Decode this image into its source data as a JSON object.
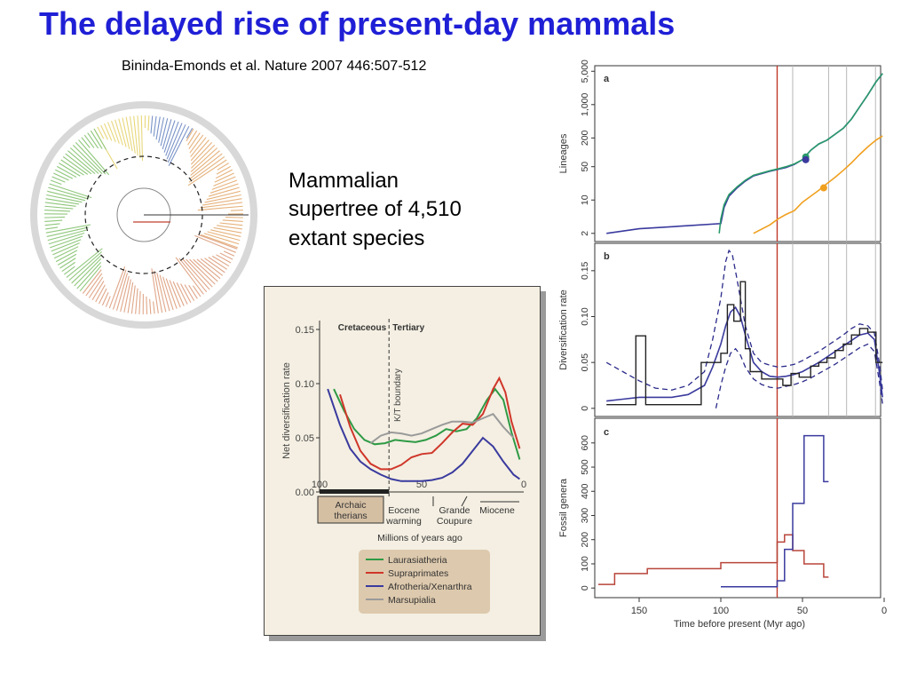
{
  "slide": {
    "title": "The delayed rise of present-day mammals",
    "citation": "Bininda-Emonds et al. Nature 2007 446:507-512",
    "caption_lines": [
      "Mammalian",
      "supertree of 4,510",
      "extant species"
    ]
  },
  "colors": {
    "title_blue": "#1f1fd6",
    "laurasiatheria": "#2e9a45",
    "supraprimates": "#d0362a",
    "afrotheria_xenarthra": "#3a3a9e",
    "marsupialia": "#9a9a9a",
    "kt_line": "#c0392b",
    "lineage_orange": "#f0a020",
    "inset_bg": "#f4efe2"
  },
  "chart_data": [
    {
      "id": "inset",
      "type": "line",
      "title": "",
      "era_labels": [
        "Cretaceous",
        "Tertiary"
      ],
      "boundary_label": "K/T boundary",
      "xlabel": "Millions of years ago",
      "ylabel": "Net diversification rate",
      "xlim": [
        100,
        0
      ],
      "ylim": [
        0,
        0.15
      ],
      "x_ticks": [
        "100",
        "50",
        "0"
      ],
      "y_ticks": [
        "0.00",
        "0.05",
        "0.10",
        "0.15"
      ],
      "annotations": [
        "Eocene warming",
        "Grande Coupure",
        "Miocene"
      ],
      "bar_label": "Archaic therians",
      "legend": [
        "Laurasiatheria",
        "Supraprimates",
        "Afrotheria/Xenarthra",
        "Marsupialia"
      ],
      "series": [
        {
          "name": "Laurasiatheria",
          "x": [
            93,
            88,
            83,
            78,
            73,
            68,
            63,
            58,
            53,
            48,
            43,
            38,
            33,
            28,
            23,
            18,
            14,
            10,
            6,
            2
          ],
          "y": [
            0.095,
            0.075,
            0.058,
            0.048,
            0.044,
            0.045,
            0.048,
            0.047,
            0.046,
            0.048,
            0.052,
            0.058,
            0.056,
            0.058,
            0.068,
            0.085,
            0.095,
            0.085,
            0.055,
            0.03
          ]
        },
        {
          "name": "Supraprimates",
          "x": [
            90,
            85,
            80,
            75,
            70,
            65,
            60,
            55,
            50,
            45,
            40,
            35,
            30,
            25,
            20,
            15,
            12,
            9,
            6,
            2
          ],
          "y": [
            0.09,
            0.06,
            0.038,
            0.026,
            0.021,
            0.021,
            0.025,
            0.032,
            0.035,
            0.036,
            0.045,
            0.055,
            0.063,
            0.062,
            0.072,
            0.095,
            0.105,
            0.092,
            0.065,
            0.04
          ]
        },
        {
          "name": "Afrotheria/Xenarthra",
          "x": [
            96,
            90,
            85,
            80,
            75,
            70,
            65,
            60,
            55,
            50,
            45,
            40,
            35,
            30,
            25,
            20,
            15,
            10,
            5,
            2
          ],
          "y": [
            0.095,
            0.062,
            0.04,
            0.028,
            0.021,
            0.016,
            0.012,
            0.01,
            0.01,
            0.01,
            0.011,
            0.013,
            0.018,
            0.026,
            0.038,
            0.05,
            0.042,
            0.028,
            0.016,
            0.012
          ]
        },
        {
          "name": "Marsupialia",
          "x": [
            75,
            70,
            65,
            60,
            55,
            50,
            45,
            40,
            35,
            30,
            25,
            20,
            15,
            10,
            5
          ],
          "y": [
            0.045,
            0.052,
            0.055,
            0.054,
            0.052,
            0.054,
            0.058,
            0.062,
            0.065,
            0.065,
            0.064,
            0.068,
            0.072,
            0.06,
            0.05
          ]
        }
      ]
    },
    {
      "id": "panel-a",
      "type": "line",
      "panel_label": "a",
      "ylabel": "Lineages",
      "xlim": [
        175,
        0
      ],
      "ylim": [
        1.6,
        6000
      ],
      "yscale": "log",
      "y_ticks": [
        2,
        10,
        50,
        200,
        1000,
        5000
      ],
      "y_tick_labels": [
        "2",
        "10",
        "50",
        "200",
        "1,000",
        "5,000"
      ],
      "series": [
        {
          "color": "blue",
          "x": [
            170,
            150,
            100,
            98,
            95,
            90,
            85,
            80,
            70,
            65,
            60,
            55,
            50,
            45,
            40,
            35,
            30,
            25,
            20,
            15,
            10,
            5,
            1
          ],
          "y": [
            2,
            2.5,
            3.2,
            7,
            12,
            18,
            25,
            32,
            40,
            44,
            48,
            56,
            70,
            110,
            150,
            180,
            240,
            320,
            500,
            900,
            1600,
            3000,
            4500
          ]
        },
        {
          "color": "green",
          "x": [
            101,
            100,
            98,
            95,
            90,
            85,
            80,
            70,
            65,
            60,
            55,
            50,
            45,
            40,
            35,
            30,
            25,
            20,
            15,
            10,
            5,
            1
          ],
          "y": [
            2,
            4,
            8,
            13,
            19,
            26,
            33,
            41,
            45,
            50,
            57,
            70,
            110,
            150,
            180,
            240,
            320,
            500,
            900,
            1600,
            3000,
            4500
          ]
        },
        {
          "color": "orange",
          "x": [
            80,
            70,
            65,
            60,
            55,
            50,
            45,
            40,
            35,
            30,
            25,
            20,
            15,
            10,
            5,
            1
          ],
          "y": [
            2,
            3,
            4,
            5,
            6,
            9,
            12,
            16,
            22,
            30,
            42,
            60,
            90,
            130,
            180,
            220
          ]
        }
      ],
      "highlight_points": [
        {
          "color": "green",
          "x": 48,
          "y": 80
        },
        {
          "color": "blue",
          "x": 48,
          "y": 70
        },
        {
          "color": "orange",
          "x": 37,
          "y": 18
        }
      ],
      "vertical_lines": [
        65.5,
        56,
        34,
        23,
        5.3,
        1.8
      ]
    },
    {
      "id": "panel-b",
      "type": "line",
      "panel_label": "b",
      "ylabel": "Diversification rate",
      "xlim": [
        175,
        0
      ],
      "ylim": [
        -0.005,
        0.175
      ],
      "y_ticks": [
        0,
        0.05,
        0.1,
        0.15
      ],
      "y_tick_labels": [
        "0",
        "0.05",
        "0.10",
        "0.15"
      ],
      "step_series": {
        "x": [
          170,
          152,
          152,
          146,
          146,
          112,
          112,
          100,
          100,
          96,
          96,
          92,
          92,
          88,
          88,
          85,
          85,
          82,
          82,
          75,
          75,
          62,
          62,
          57,
          57,
          52,
          52,
          45,
          45,
          40,
          40,
          35,
          35,
          30,
          30,
          25,
          25,
          20,
          20,
          15,
          15,
          10,
          10,
          5,
          5,
          1
        ],
        "y": [
          0.004,
          0.004,
          0.079,
          0.079,
          0.004,
          0.004,
          0.05,
          0.05,
          0.06,
          0.06,
          0.113,
          0.113,
          0.095,
          0.095,
          0.138,
          0.138,
          0.065,
          0.065,
          0.04,
          0.04,
          0.032,
          0.032,
          0.025,
          0.025,
          0.038,
          0.038,
          0.034,
          0.034,
          0.046,
          0.046,
          0.05,
          0.05,
          0.055,
          0.055,
          0.063,
          0.063,
          0.07,
          0.07,
          0.08,
          0.08,
          0.087,
          0.087,
          0.083,
          0.083,
          0.05,
          0.05
        ]
      },
      "mean_series": {
        "x": [
          170,
          160,
          150,
          140,
          130,
          120,
          110,
          105,
          100,
          97,
          94,
          91,
          88,
          85,
          80,
          75,
          70,
          65,
          60,
          55,
          50,
          45,
          40,
          35,
          30,
          25,
          20,
          15,
          10,
          6,
          3,
          1
        ],
        "y": [
          0.008,
          0.01,
          0.012,
          0.012,
          0.012,
          0.015,
          0.025,
          0.045,
          0.07,
          0.09,
          0.105,
          0.11,
          0.1,
          0.08,
          0.05,
          0.04,
          0.035,
          0.034,
          0.035,
          0.037,
          0.04,
          0.045,
          0.05,
          0.056,
          0.062,
          0.068,
          0.074,
          0.08,
          0.082,
          0.075,
          0.04,
          0.012
        ]
      },
      "upper_ci": {
        "x": [
          170,
          160,
          150,
          140,
          130,
          120,
          110,
          105,
          100,
          97,
          95,
          93,
          90,
          85,
          80,
          75,
          70,
          65,
          60,
          55,
          50,
          45,
          40,
          35,
          30,
          25,
          20,
          15,
          10,
          6,
          3,
          1
        ],
        "y": [
          0.05,
          0.04,
          0.03,
          0.022,
          0.02,
          0.025,
          0.04,
          0.075,
          0.12,
          0.16,
          0.172,
          0.168,
          0.14,
          0.09,
          0.06,
          0.05,
          0.047,
          0.045,
          0.046,
          0.048,
          0.052,
          0.057,
          0.062,
          0.068,
          0.074,
          0.08,
          0.087,
          0.092,
          0.09,
          0.082,
          0.05,
          0.02
        ]
      },
      "lower_ci": {
        "x": [
          103,
          100,
          97,
          94,
          91,
          88,
          85,
          80,
          75,
          70,
          65,
          60,
          55,
          50,
          45,
          40,
          35,
          30,
          25,
          20,
          15,
          10,
          6,
          3,
          1
        ],
        "y": [
          0.0,
          0.025,
          0.045,
          0.06,
          0.065,
          0.058,
          0.045,
          0.032,
          0.026,
          0.023,
          0.022,
          0.024,
          0.026,
          0.029,
          0.033,
          0.038,
          0.043,
          0.048,
          0.054,
          0.06,
          0.066,
          0.07,
          0.062,
          0.03,
          0.005
        ]
      },
      "vertical_lines": [
        65.5,
        56,
        34,
        23,
        5.3,
        1.8
      ]
    },
    {
      "id": "panel-c",
      "type": "line",
      "panel_label": "c",
      "ylabel": "Fossil genera",
      "xlabel": "Time before present (Myr ago)",
      "xlim": [
        175,
        0
      ],
      "ylim": [
        -25,
        680
      ],
      "x_ticks": [
        150,
        100,
        50,
        0
      ],
      "y_ticks": [
        0,
        100,
        200,
        300,
        400,
        500,
        600
      ],
      "series": [
        {
          "color": "red",
          "x": [
            175,
            165,
            165,
            145,
            145,
            100,
            100,
            65.5,
            65.5,
            61,
            61,
            56,
            56,
            49,
            49,
            37,
            37,
            34
          ],
          "y": [
            15,
            15,
            60,
            60,
            80,
            80,
            105,
            105,
            190,
            190,
            220,
            220,
            155,
            155,
            100,
            100,
            45,
            45
          ]
        },
        {
          "color": "blue",
          "x": [
            100,
            65.5,
            65.5,
            61,
            61,
            56,
            56,
            49,
            49,
            37,
            37,
            34
          ],
          "y": [
            5,
            5,
            30,
            30,
            160,
            160,
            350,
            350,
            630,
            630,
            440,
            440
          ]
        }
      ],
      "vertical_lines": [
        65.5
      ]
    }
  ]
}
